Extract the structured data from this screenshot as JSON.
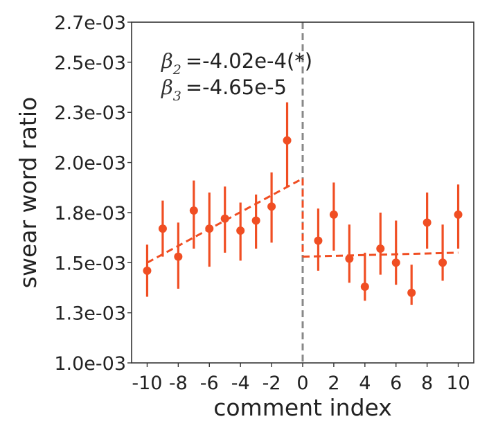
{
  "chart_data": {
    "type": "scatter",
    "xlabel": "comment index",
    "ylabel": "swear word ratio",
    "xlim": [
      -11,
      11
    ],
    "ylim": [
      0.001,
      0.0027
    ],
    "x_ticks": [
      -10,
      -8,
      -6,
      -4,
      -2,
      0,
      2,
      4,
      6,
      8,
      10
    ],
    "x_tick_labels": [
      "-10",
      "-8",
      "-6",
      "-4",
      "-2",
      "0",
      "2",
      "4",
      "6",
      "8",
      "10"
    ],
    "y_ticks": [
      0.001,
      0.00125,
      0.0015,
      0.00175,
      0.002,
      0.00225,
      0.0025,
      0.0027
    ],
    "y_tick_labels": [
      "1.0e-03",
      "1.3e-03",
      "1.5e-03",
      "1.8e-03",
      "2.0e-03",
      "2.3e-03",
      "2.5e-03",
      "2.7e-03"
    ],
    "grid": false,
    "series": [
      {
        "x": [
          -10,
          -9,
          -8,
          -7,
          -6,
          -5,
          -4,
          -3,
          -2,
          -1,
          1,
          2,
          3,
          4,
          5,
          6,
          7,
          8,
          9,
          10
        ],
        "y": [
          0.00146,
          0.00167,
          0.00153,
          0.00176,
          0.00167,
          0.00172,
          0.00166,
          0.00171,
          0.00178,
          0.00211,
          0.00161,
          0.00174,
          0.00152,
          0.00138,
          0.00157,
          0.0015,
          0.00135,
          0.0017,
          0.0015,
          0.00174
        ],
        "yerr_low": [
          0.00133,
          0.00153,
          0.00137,
          0.00157,
          0.00148,
          0.00155,
          0.00151,
          0.00157,
          0.0016,
          0.00188,
          0.00146,
          0.00156,
          0.0014,
          0.00131,
          0.00144,
          0.00139,
          0.00129,
          0.00157,
          0.00141,
          0.00157
        ],
        "yerr_high": [
          0.00159,
          0.00181,
          0.0017,
          0.00191,
          0.00185,
          0.00188,
          0.0018,
          0.00184,
          0.00195,
          0.0023,
          0.00177,
          0.0019,
          0.00169,
          0.00155,
          0.00175,
          0.00171,
          0.00149,
          0.00185,
          0.00169,
          0.00189
        ]
      }
    ],
    "fit_lines": [
      {
        "x": [
          -10,
          0
        ],
        "y": [
          0.0015,
          0.00192
        ]
      },
      {
        "x": [
          0,
          10
        ],
        "y": [
          0.00153,
          0.00155
        ]
      }
    ],
    "vline_x": 0,
    "annotations": [
      {
        "symbol": "β",
        "subscript": "2",
        "value": "=-4.02e-4(*)"
      },
      {
        "symbol": "β",
        "subscript": "3",
        "value": "=-4.65e-5"
      }
    ],
    "colors": {
      "series": "#f04e23",
      "vline": "#888888",
      "axes": "#333333"
    }
  }
}
